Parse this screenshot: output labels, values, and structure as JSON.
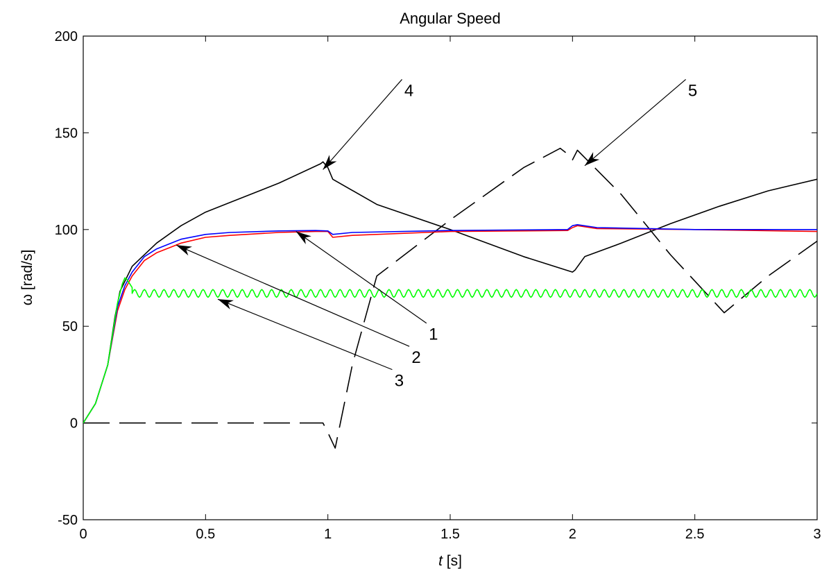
{
  "chart_data": {
    "type": "line",
    "title": "Angular Speed",
    "xlabel_var": "t",
    "xlabel_unit": " [s]",
    "ylabel": "ω [rad/s]",
    "xlim": [
      0,
      3
    ],
    "ylim": [
      -50,
      200
    ],
    "xticks": [
      0,
      0.5,
      1,
      1.5,
      2,
      2.5,
      3
    ],
    "xtick_labels": [
      "0",
      "0.5",
      "1",
      "1.5",
      "2",
      "2.5",
      "3"
    ],
    "yticks": [
      -50,
      0,
      50,
      100,
      150,
      200
    ],
    "ytick_labels": [
      "-50",
      "0",
      "50",
      "100",
      "150",
      "200"
    ],
    "grid": false,
    "colors": {
      "black": "#000000",
      "red": "#ff0000",
      "blue": "#0000ff",
      "green": "#00ff00"
    },
    "series": [
      {
        "id": "curve-4",
        "color": "#000000",
        "style": "solid",
        "x": [
          0,
          0.05,
          0.1,
          0.13,
          0.15,
          0.2,
          0.3,
          0.4,
          0.5,
          0.6,
          0.8,
          0.97,
          0.98,
          1.0,
          1.02,
          1.2,
          1.5,
          1.8,
          2.0,
          2.01,
          2.05,
          2.2,
          2.4,
          2.6,
          2.8,
          3.0
        ],
        "y": [
          0,
          10,
          30,
          55,
          68,
          81,
          93,
          102,
          109,
          114,
          124,
          134,
          135,
          132,
          126,
          113,
          100,
          86,
          78,
          79,
          86,
          93,
          103,
          112,
          120,
          126
        ]
      },
      {
        "id": "curve-5",
        "color": "#000000",
        "style": "dashed",
        "x": [
          0,
          0.98,
          1.0,
          1.03,
          1.1,
          1.2,
          1.5,
          1.8,
          1.95,
          1.98,
          2.0,
          2.02,
          2.2,
          2.4,
          2.62,
          2.8,
          3.0
        ],
        "y": [
          0,
          0,
          -5,
          -13,
          30,
          76,
          105,
          132,
          142,
          139,
          136,
          141,
          118,
          87,
          57,
          76,
          94
        ]
      },
      {
        "id": "curve-2",
        "color": "#ff0000",
        "style": "solid",
        "x": [
          0,
          0.05,
          0.1,
          0.14,
          0.17,
          0.2,
          0.25,
          0.3,
          0.4,
          0.5,
          0.6,
          0.8,
          0.95,
          1.0,
          1.02,
          1.1,
          1.5,
          1.98,
          2.0,
          2.02,
          2.1,
          2.5,
          3.0
        ],
        "y": [
          0,
          10,
          30,
          58,
          69,
          76,
          84,
          88,
          93,
          96,
          97,
          98.5,
          99,
          99,
          96,
          97,
          99,
          99.5,
          101,
          102,
          100.5,
          100,
          99
        ]
      },
      {
        "id": "curve-1",
        "color": "#0000ff",
        "style": "solid",
        "x": [
          0,
          0.05,
          0.1,
          0.14,
          0.17,
          0.2,
          0.25,
          0.3,
          0.4,
          0.5,
          0.6,
          0.8,
          0.95,
          1.0,
          1.02,
          1.1,
          1.5,
          1.98,
          2.0,
          2.02,
          2.1,
          2.5,
          3.0
        ],
        "y": [
          0,
          10,
          30,
          60,
          71,
          78,
          86,
          90,
          95,
          97.5,
          98.5,
          99.3,
          99.5,
          99.3,
          97.5,
          98.5,
          99.5,
          100,
          102,
          102.5,
          101,
          100,
          100
        ]
      },
      {
        "id": "curve-3",
        "color": "#00ff00",
        "style": "solid",
        "oscillation": {
          "center": 67,
          "amplitude": 2,
          "period": 0.04,
          "from": 0.2
        },
        "x": [
          0,
          0.05,
          0.1,
          0.14,
          0.16,
          0.17,
          0.18,
          0.2,
          0.22,
          0.24,
          3.0
        ],
        "y": [
          0,
          10,
          30,
          62,
          72,
          75,
          74,
          70,
          67,
          65,
          67
        ]
      }
    ],
    "annotations": [
      {
        "id": "callout-1",
        "label": "1",
        "text_x": 1.42,
        "text_y": 43,
        "tip_x": 0.87,
        "tip_y": 99
      },
      {
        "id": "callout-2",
        "label": "2",
        "text_x": 1.35,
        "text_y": 31,
        "tip_x": 0.38,
        "tip_y": 92
      },
      {
        "id": "callout-3",
        "label": "3",
        "text_x": 1.28,
        "text_y": 19,
        "tip_x": 0.55,
        "tip_y": 64
      },
      {
        "id": "callout-4",
        "label": "4",
        "text_x": 1.32,
        "text_y": 169,
        "tip_x": 0.98,
        "tip_y": 131
      },
      {
        "id": "callout-5",
        "label": "5",
        "text_x": 2.48,
        "text_y": 169,
        "tip_x": 2.05,
        "tip_y": 133
      }
    ]
  }
}
